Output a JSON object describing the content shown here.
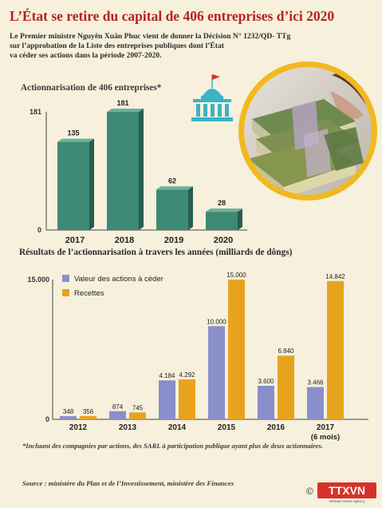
{
  "header": {
    "title": "L’État se retire du capital de 406 entreprises d’ici 2020",
    "intro_lines": [
      "Le Premier ministre Nguyên Xuân Phuc vient de donner la Décision N° 1232/QD- TTg",
      "sur l’approbation de la Liste des entreprises publiques dont l’État",
      "va céder ses actions dans la période 2007-2020."
    ]
  },
  "chart_data": [
    {
      "type": "bar",
      "title": "Actionnarisation de 406 entreprises*",
      "categories": [
        "2017",
        "2018",
        "2019",
        "2020"
      ],
      "values": [
        135,
        181,
        62,
        28
      ],
      "value_labels": [
        "135",
        "181",
        "62",
        "28"
      ],
      "y_ticks": [
        "181",
        "0"
      ],
      "ylim": [
        0,
        181
      ],
      "grid": false,
      "colors": {
        "bar_front": "#3d8a74",
        "bar_side": "#2a5c4e",
        "bar_top": "#6fb19c"
      }
    },
    {
      "type": "bar",
      "title": "Résultats de l’actionnarisation à travers les années (milliards de dôngs)",
      "categories": [
        "2012",
        "2013",
        "2014",
        "2015",
        "2016",
        "2017"
      ],
      "category_sublabels": [
        "",
        "",
        "",
        "",
        "",
        "(6 mois)"
      ],
      "series": [
        {
          "name": "Valeur des actions à céder",
          "values": [
            348,
            874,
            4184,
            10000,
            3600,
            3466
          ],
          "labels": [
            "348",
            "874",
            "4.184",
            "10.000",
            "3.600",
            "3.466"
          ],
          "color": "#8a8fc9"
        },
        {
          "name": "Recettes",
          "values": [
            356,
            745,
            4292,
            15000,
            6840,
            14842
          ],
          "labels": [
            "356",
            "745",
            "4.292",
            "15.000",
            "6.840",
            "14.842"
          ],
          "color": "#e8a31e"
        }
      ],
      "y_ticks": [
        "15.000",
        "0"
      ],
      "ylim": [
        0,
        15000
      ],
      "grid": false,
      "legend": "top-left"
    }
  ],
  "footnote": "*Incluant des compagnies par actions, des SARL à participation publique ayant plus de deux actionnaires.",
  "source": "Source : ministère du Plan et de l’Investissement, ministère des Finances",
  "logo": {
    "text": "TTXVN",
    "subtext": "Vietnam News Agency",
    "copyright": "©"
  },
  "colors": {
    "background": "#f6f0dc",
    "title": "#b5241c",
    "building": "#3bb3c3",
    "flag": "#d6322a",
    "circle_ring": "#f2b81e"
  }
}
